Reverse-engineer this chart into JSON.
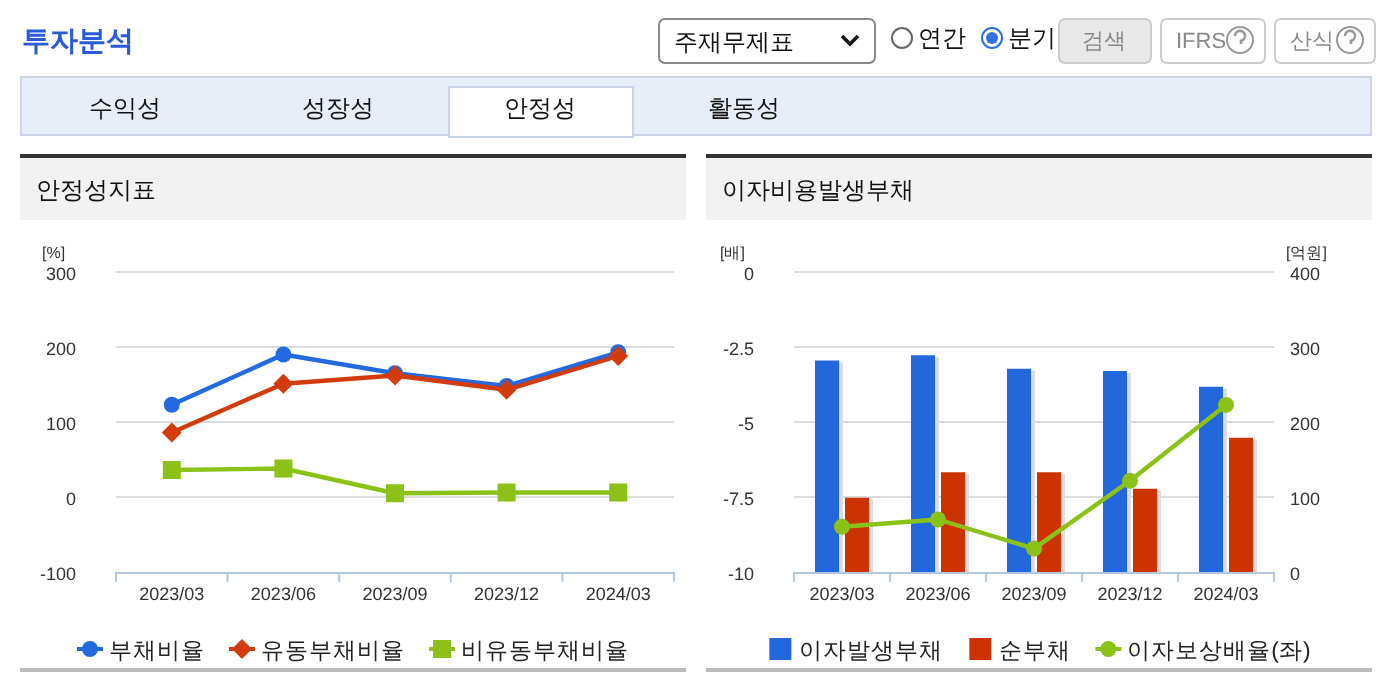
{
  "chart_data": [
    {
      "type": "other",
      "title": "투자분석",
      "annotations": [
        "주재무제표",
        "연간",
        "분기",
        "검색",
        "IFRS",
        "산식",
        "수익성",
        "성장성",
        "안정성",
        "활동성"
      ]
    },
    {
      "type": "line",
      "title": "안정성지표",
      "ylabel": "[%]",
      "categories": [
        "2023/03",
        "2023/06",
        "2023/09",
        "2023/12",
        "2024/03"
      ],
      "ylim": [
        -100,
        300
      ],
      "yticks": [
        -100,
        0,
        100,
        200,
        300
      ],
      "grid": "y",
      "legend": "bottom",
      "series": [
        {
          "name": "부채비율",
          "color": "#2369e0",
          "marker": "circle",
          "values": [
            123,
            190,
            165,
            148,
            193
          ]
        },
        {
          "name": "유동부채비율",
          "color": "#d23c0c",
          "marker": "diamond",
          "values": [
            86,
            151,
            162,
            143,
            188
          ]
        },
        {
          "name": "비유동부채비율",
          "color": "#8cc218",
          "marker": "square",
          "values": [
            36,
            38,
            5,
            6,
            6
          ]
        }
      ]
    },
    {
      "type": "bar",
      "title": "이자비용발생부채",
      "ylabel": "[배]",
      "y2label": "[억원]",
      "categories": [
        "2023/03",
        "2023/06",
        "2023/09",
        "2023/12",
        "2024/03"
      ],
      "ylim": [
        -10,
        0
      ],
      "yticks": [
        -10,
        -7.5,
        -5,
        -2.5,
        0
      ],
      "y2lim": [
        0,
        400
      ],
      "y2ticks": [
        0,
        100,
        200,
        300,
        400
      ],
      "grid": "y",
      "legend": "bottom",
      "series": [
        {
          "name": "이자발생부채",
          "color": "#2268dc",
          "type": "bar",
          "axis": "y2",
          "values": [
            282,
            289,
            271,
            268,
            247
          ]
        },
        {
          "name": "순부채",
          "color": "#cc3300",
          "type": "bar",
          "axis": "y2",
          "values": [
            99,
            133,
            133,
            111,
            179
          ]
        },
        {
          "name": "이자보상배율(좌)",
          "color": "#8cc218",
          "type": "line",
          "axis": "y",
          "marker": "circle",
          "values": [
            -8.49,
            -8.25,
            -9.22,
            -6.96,
            -4.43
          ]
        }
      ]
    }
  ]
}
